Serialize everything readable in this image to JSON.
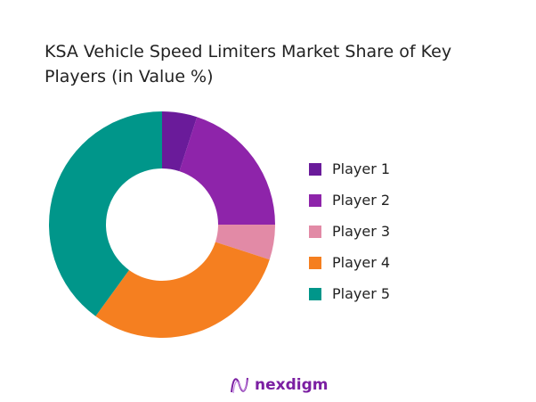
{
  "chart_data": {
    "type": "pie",
    "donut": true,
    "title": "KSA Vehicle Speed Limiters Market Share of Key Players (in Value %)",
    "categories": [
      "Player 1",
      "Player 2",
      "Player 3",
      "Player 4",
      "Player 5"
    ],
    "values": [
      5,
      20,
      5,
      30,
      40
    ],
    "colors": [
      "#6a1b9a",
      "#8e24aa",
      "#e28aa6",
      "#f57f20",
      "#00968a"
    ],
    "legend_position": "right"
  },
  "brand": {
    "name": "nexdigm"
  }
}
